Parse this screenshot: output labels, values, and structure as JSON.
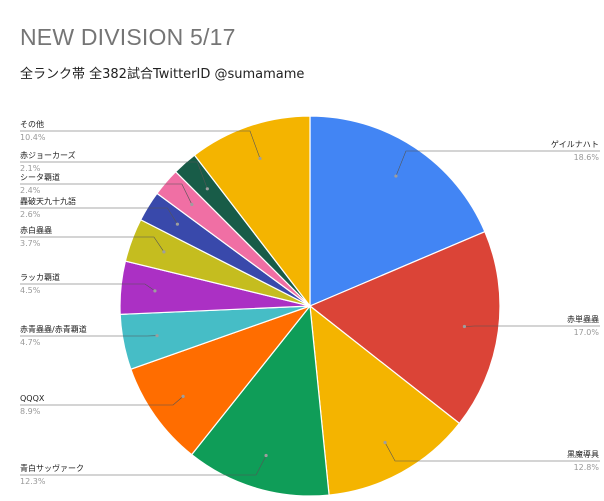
{
  "chart_data": {
    "type": "pie",
    "title": "NEW DIVISION 5/17",
    "subtitle": "全ランク帯 全382試合TwitterID @sumamame",
    "slices": [
      {
        "label": "ゲイルナハト",
        "value": 18.6,
        "pct": "18.6%",
        "color": "#4285f4"
      },
      {
        "label": "赤単蟲蟲",
        "value": 17.0,
        "pct": "17.0%",
        "color": "#db4437"
      },
      {
        "label": "黒魔導具",
        "value": 12.8,
        "pct": "12.8%",
        "color": "#f4b400"
      },
      {
        "label": "青白サッヴァーク",
        "value": 12.3,
        "pct": "12.3%",
        "color": "#0f9d58"
      },
      {
        "label": "QQQX",
        "value": 8.9,
        "pct": "8.9%",
        "color": "#ff6d00"
      },
      {
        "label": "赤青蟲蟲/赤青覇道",
        "value": 4.7,
        "pct": "4.7%",
        "color": "#46bdc6"
      },
      {
        "label": "ラッカ覇道",
        "value": 4.5,
        "pct": "4.5%",
        "color": "#ab30c4"
      },
      {
        "label": "赤白蟲蟲",
        "value": 3.7,
        "pct": "3.7%",
        "color": "#c5bd1f"
      },
      {
        "label": "轟破天九十九語",
        "value": 2.6,
        "pct": "2.6%",
        "color": "#3949ab"
      },
      {
        "label": "シータ覇道",
        "value": 2.4,
        "pct": "2.4%",
        "color": "#f06fa4"
      },
      {
        "label": "赤ジョーカーズ",
        "value": 2.1,
        "pct": "2.1%",
        "color": "#185c48"
      },
      {
        "label": "その他",
        "value": 10.4,
        "pct": "10.4%",
        "color": "#f4b400"
      }
    ]
  }
}
